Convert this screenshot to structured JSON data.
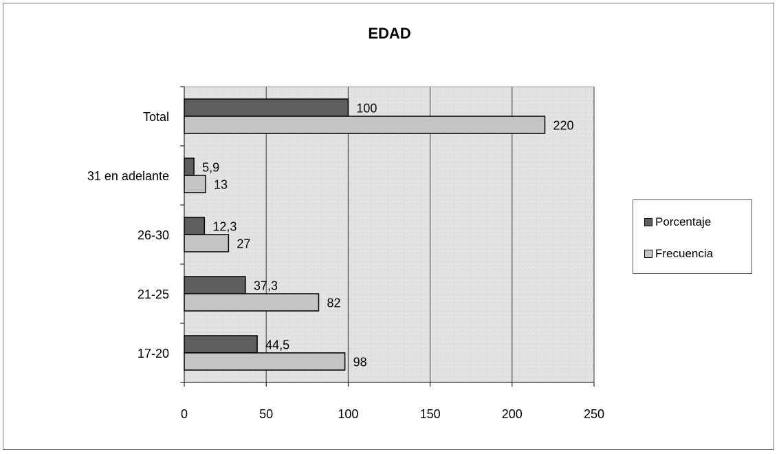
{
  "chart_data": {
    "type": "bar",
    "orientation": "horizontal",
    "title": "EDAD",
    "xlabel": "",
    "ylabel": "",
    "xlim": [
      0,
      250
    ],
    "x_ticks": [
      "0",
      "50",
      "100",
      "150",
      "200",
      "250"
    ],
    "grid": "vertical",
    "legend_position": "right",
    "categories": [
      "17-20",
      "21-25",
      "26-30",
      "31 en adelante",
      "Total"
    ],
    "series": [
      {
        "name": "Porcentaje",
        "color": "#5e5e5e",
        "values": [
          44.5,
          37.3,
          12.3,
          5.9,
          100
        ],
        "labels": [
          "44,5",
          "37,3",
          "12,3",
          "5,9",
          "100"
        ]
      },
      {
        "name": "Frecuencia",
        "color": "#c4c4c4",
        "values": [
          98,
          82,
          27,
          13,
          220
        ],
        "labels": [
          "98",
          "82",
          "27",
          "13",
          "220"
        ]
      }
    ],
    "plot_background": "#e2e2e2"
  }
}
